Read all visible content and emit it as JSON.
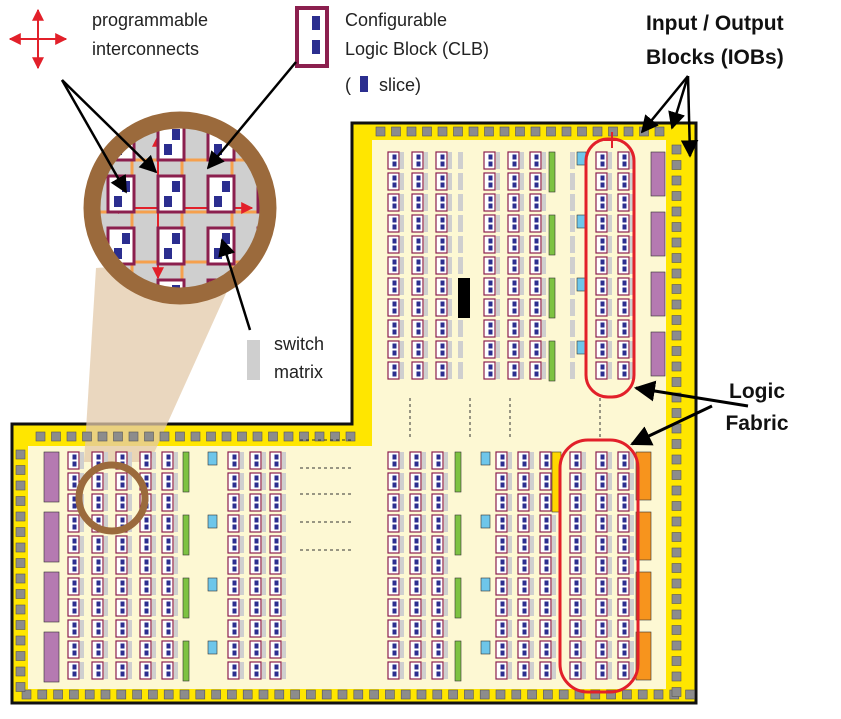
{
  "labels": {
    "interconnect_line1": "programmable",
    "interconnect_line2": "interconnects",
    "clb_line1": "Configurable",
    "clb_line2": "Logic  Block  (CLB)",
    "slice_open": "(",
    "slice_text": "slice)",
    "iob_line1": "Input  /  Output",
    "iob_line2": "Blocks  (IOBs)",
    "switch_line1": "switch",
    "switch_line2": "matrix",
    "fabric_line1": "Logic",
    "fabric_line2": "Fabric"
  },
  "colors": {
    "die_fill": "#fdf8d3",
    "border_yellow": "#ffe600",
    "outline": "#111111",
    "io_pad": "#8c8c8c",
    "clb_border": "#8b1f4e",
    "slice": "#2b2e8f",
    "switch_matrix": "#cfcfcf",
    "green_block": "#7dc242",
    "blue_block": "#6ec6ea",
    "purple_block": "#b57ab1",
    "orange_block": "#f7941d",
    "black_block": "#000000",
    "highlight": "#e2202a",
    "lens_ring": "#9b6a3c",
    "lens_beam": "#e3c9a9",
    "interconnect": "#e2202a",
    "routing_orange": "#f6a04d"
  },
  "icons": {
    "interconnect_legend": "red-four-way-arrow-icon",
    "clb_legend": "clb-icon",
    "slice_legend": "slice-icon",
    "switch_legend": "switch-matrix-swatch"
  }
}
